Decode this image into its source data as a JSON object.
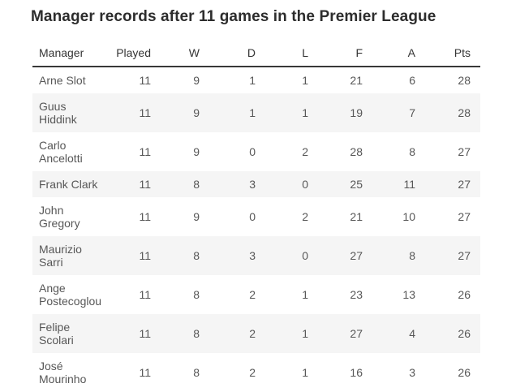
{
  "title": "Manager records after 11 games in the Premier League",
  "chart_data": {
    "type": "table",
    "title": "Manager records after 11 games in the Premier League",
    "columns": [
      "Manager",
      "Played",
      "W",
      "D",
      "L",
      "F",
      "A",
      "Pts"
    ],
    "rows": [
      [
        "Arne Slot",
        "11",
        "9",
        "1",
        "1",
        "21",
        "6",
        "28"
      ],
      [
        "Guus Hiddink",
        "11",
        "9",
        "1",
        "1",
        "19",
        "7",
        "28"
      ],
      [
        "Carlo Ancelotti",
        "11",
        "9",
        "0",
        "2",
        "28",
        "8",
        "27"
      ],
      [
        "Frank Clark",
        "11",
        "8",
        "3",
        "0",
        "25",
        "11",
        "27"
      ],
      [
        "John Gregory",
        "11",
        "9",
        "0",
        "2",
        "21",
        "10",
        "27"
      ],
      [
        "Maurizio Sarri",
        "11",
        "8",
        "3",
        "0",
        "27",
        "8",
        "27"
      ],
      [
        "Ange Postecoglou",
        "11",
        "8",
        "2",
        "1",
        "23",
        "13",
        "26"
      ],
      [
        "Felipe Scolari",
        "11",
        "8",
        "2",
        "1",
        "27",
        "4",
        "26"
      ],
      [
        "José Mourinho",
        "11",
        "8",
        "2",
        "1",
        "16",
        "3",
        "26"
      ]
    ],
    "layout": {
      "stripe_even_rows": true,
      "numeric_columns_alignment": "right",
      "header_rule": "2px dark"
    }
  },
  "colors": {
    "stripe": "#f5f5f5",
    "header_rule": "#383838",
    "title_text": "#2d2d2d",
    "header_text": "#353535",
    "body_text": "#575757",
    "background": "#ffffff"
  }
}
